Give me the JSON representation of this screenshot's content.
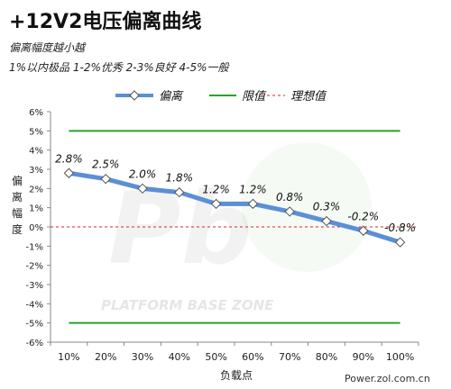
{
  "title": "+12V2电压偏离曲线",
  "subtitle_lines": [
    "偏离幅度越小越",
    "1%以内极品 1-2%优秀 2-3%良好 4-5%一般"
  ],
  "legend": [
    {
      "label": "偏离",
      "color": "#5b8fd6",
      "marker": "diamond"
    },
    {
      "label": "限值",
      "color": "#2aa02a",
      "marker": "none"
    },
    {
      "label": "理想值",
      "color": "#d62728",
      "marker": "dashed"
    }
  ],
  "ylabel_chars": [
    "偏",
    "离",
    "幅",
    "度"
  ],
  "xlabel": "负载点",
  "source": "Power.zol.com.cn",
  "watermark": "PLATFORM BASE ZONE",
  "chart_data": {
    "type": "line",
    "categories": [
      "10%",
      "20%",
      "30%",
      "40%",
      "50%",
      "60%",
      "70%",
      "80%",
      "90%",
      "100%"
    ],
    "series": [
      {
        "name": "偏离",
        "values": [
          2.8,
          2.5,
          2.0,
          1.8,
          1.2,
          1.2,
          0.8,
          0.3,
          -0.2,
          -0.8
        ],
        "data_labels": [
          "2.8%",
          "2.5%",
          "2.0%",
          "1.8%",
          "1.2%",
          "1.2%",
          "0.8%",
          "0.3%",
          "-0.2%",
          "-0.8%"
        ],
        "color": "#5b8fd6"
      },
      {
        "name": "限值",
        "values": [
          5,
          5,
          5,
          5,
          5,
          5,
          5,
          5,
          5,
          5
        ],
        "color": "#2aa02a"
      },
      {
        "name": "限值",
        "values": [
          -5,
          -5,
          -5,
          -5,
          -5,
          -5,
          -5,
          -5,
          -5,
          -5
        ],
        "color": "#2aa02a"
      },
      {
        "name": "理想值",
        "values": [
          0,
          0,
          0,
          0,
          0,
          0,
          0,
          0,
          0,
          0
        ],
        "color": "#d62728"
      }
    ],
    "y_ticks": [
      "6%",
      "5%",
      "4%",
      "3%",
      "2%",
      "1%",
      "0%",
      "-1%",
      "-2%",
      "-3%",
      "-4%",
      "-5%",
      "-6%"
    ],
    "ylim": [
      -6,
      6
    ],
    "grid": false
  }
}
